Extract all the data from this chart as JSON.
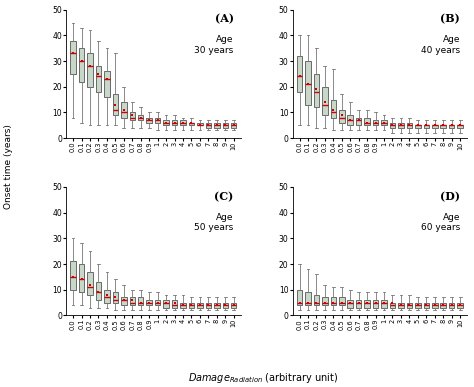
{
  "x_labels": [
    "0.0",
    "0.1",
    "0.2",
    "0.3",
    "0.4",
    "0.5",
    "0.6",
    "0.7",
    "0.8",
    "0.9",
    "1",
    "2",
    "3",
    "4",
    "5",
    "6",
    "7",
    "8",
    "9",
    "10"
  ],
  "panels": [
    {
      "label": "(A)",
      "age_text": "Age\n30 years",
      "whislo": [
        8,
        6,
        5,
        5,
        5,
        5,
        4,
        4,
        4,
        4,
        3,
        3,
        3,
        3,
        3,
        3,
        3,
        3,
        3,
        3
      ],
      "q1": [
        25,
        22,
        20,
        18,
        16,
        9,
        8,
        7,
        7,
        6,
        6,
        5,
        5,
        5,
        5,
        5,
        4,
        4,
        4,
        4
      ],
      "med": [
        33,
        30,
        28,
        24,
        23,
        11,
        10,
        8,
        8,
        7,
        7,
        6,
        6,
        6,
        6,
        5,
        5,
        5,
        5,
        5
      ],
      "mean": [
        33,
        30,
        28,
        25,
        23,
        13,
        11,
        9,
        8,
        7,
        7,
        6,
        6,
        6,
        6,
        5,
        5,
        5,
        5,
        5
      ],
      "q3": [
        38,
        35,
        33,
        28,
        26,
        17,
        14,
        10,
        9,
        8,
        8,
        7,
        7,
        7,
        6,
        6,
        6,
        6,
        6,
        6
      ],
      "whishi": [
        45,
        43,
        42,
        38,
        35,
        33,
        20,
        14,
        12,
        10,
        10,
        9,
        9,
        8,
        8,
        7,
        7,
        7,
        7,
        7
      ]
    },
    {
      "label": "(B)",
      "age_text": "Age\n40 years",
      "whislo": [
        5,
        5,
        4,
        4,
        3,
        3,
        3,
        3,
        3,
        3,
        3,
        2,
        2,
        2,
        2,
        2,
        2,
        2,
        2,
        2
      ],
      "q1": [
        18,
        13,
        12,
        9,
        8,
        6,
        5,
        5,
        5,
        5,
        5,
        4,
        4,
        4,
        4,
        4,
        4,
        4,
        4,
        4
      ],
      "med": [
        24,
        21,
        18,
        13,
        10,
        8,
        7,
        7,
        6,
        6,
        6,
        5,
        5,
        5,
        5,
        5,
        5,
        5,
        5,
        5
      ],
      "mean": [
        24,
        21,
        19,
        14,
        11,
        9,
        7,
        7,
        6,
        6,
        6,
        5,
        5,
        5,
        5,
        5,
        5,
        5,
        5,
        5
      ],
      "q3": [
        32,
        30,
        25,
        20,
        15,
        11,
        9,
        8,
        8,
        7,
        7,
        6,
        6,
        6,
        5,
        5,
        5,
        5,
        5,
        5
      ],
      "whishi": [
        40,
        40,
        35,
        28,
        27,
        17,
        14,
        11,
        11,
        10,
        9,
        8,
        8,
        8,
        7,
        7,
        7,
        7,
        7,
        7
      ]
    },
    {
      "label": "(C)",
      "age_text": "Age\n50 years",
      "whislo": [
        4,
        4,
        3,
        3,
        3,
        2,
        2,
        2,
        2,
        2,
        2,
        2,
        2,
        2,
        2,
        2,
        2,
        2,
        2,
        2
      ],
      "q1": [
        10,
        9,
        8,
        6,
        5,
        5,
        4,
        4,
        4,
        4,
        4,
        3,
        3,
        3,
        3,
        3,
        3,
        3,
        3,
        3
      ],
      "med": [
        15,
        14,
        11,
        9,
        7,
        6,
        6,
        5,
        5,
        5,
        5,
        5,
        4,
        4,
        4,
        4,
        4,
        4,
        4,
        4
      ],
      "mean": [
        15,
        14,
        12,
        9,
        8,
        7,
        6,
        6,
        5,
        5,
        5,
        5,
        5,
        4,
        4,
        4,
        4,
        4,
        4,
        4
      ],
      "q3": [
        21,
        20,
        17,
        13,
        10,
        9,
        7,
        7,
        7,
        6,
        6,
        6,
        6,
        5,
        5,
        5,
        5,
        5,
        5,
        5
      ],
      "whishi": [
        30,
        28,
        25,
        20,
        17,
        14,
        12,
        10,
        10,
        9,
        9,
        8,
        8,
        8,
        7,
        7,
        7,
        7,
        7,
        7
      ]
    },
    {
      "label": "(D)",
      "age_text": "Age\n60 years",
      "whislo": [
        2,
        2,
        2,
        2,
        2,
        2,
        2,
        2,
        2,
        2,
        2,
        2,
        2,
        2,
        2,
        2,
        2,
        2,
        2,
        2
      ],
      "q1": [
        4,
        4,
        4,
        4,
        4,
        4,
        3,
        3,
        3,
        3,
        3,
        3,
        3,
        3,
        3,
        3,
        3,
        3,
        3,
        3
      ],
      "med": [
        5,
        5,
        5,
        5,
        5,
        5,
        5,
        5,
        5,
        5,
        5,
        4,
        4,
        4,
        4,
        4,
        4,
        4,
        4,
        4
      ],
      "mean": [
        5,
        5,
        5,
        5,
        5,
        5,
        5,
        5,
        5,
        5,
        5,
        5,
        4,
        4,
        4,
        4,
        4,
        4,
        4,
        4
      ],
      "q3": [
        10,
        9,
        8,
        7,
        7,
        7,
        6,
        6,
        6,
        6,
        6,
        5,
        5,
        5,
        5,
        5,
        5,
        5,
        5,
        5
      ],
      "whishi": [
        20,
        18,
        16,
        12,
        11,
        11,
        10,
        9,
        9,
        9,
        9,
        8,
        8,
        8,
        7,
        7,
        7,
        7,
        7,
        7
      ]
    }
  ],
  "box_facecolor": "#c8d8c8",
  "box_edgecolor": "#555555",
  "median_color": "#cc0000",
  "mean_color": "#cc0000",
  "whisker_color": "#777777",
  "cap_color": "#777777",
  "ylabel": "Onset time (years)",
  "ylim": [
    0,
    50
  ],
  "yticks": [
    0,
    10,
    20,
    30,
    40,
    50
  ]
}
